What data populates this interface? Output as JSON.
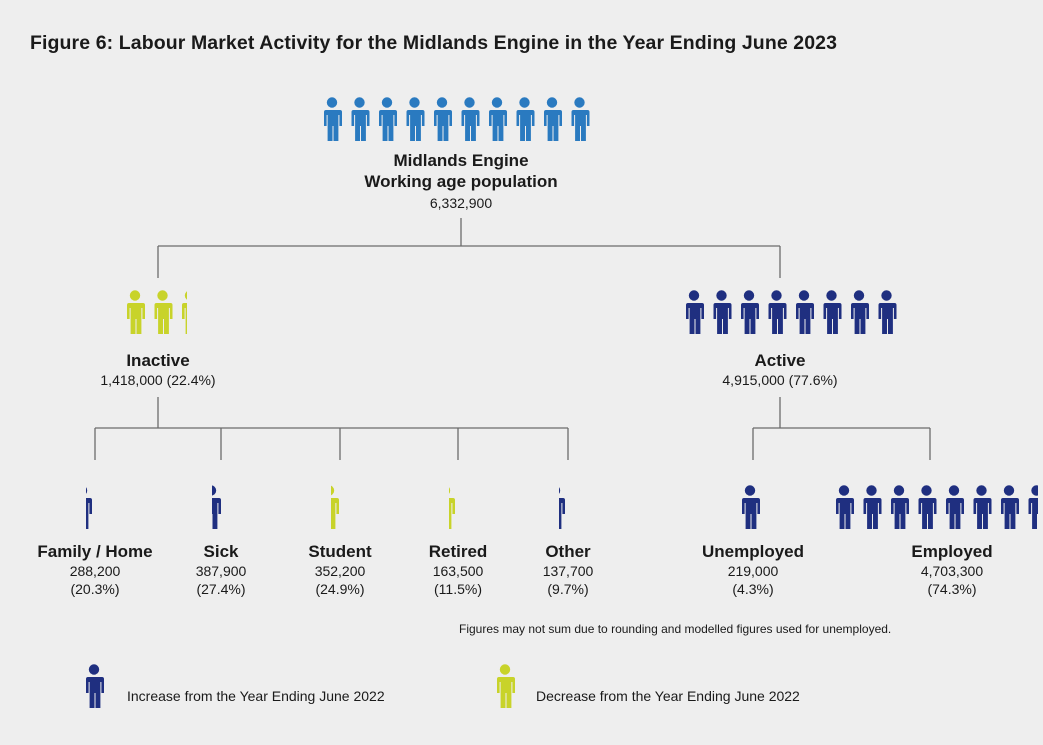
{
  "title": "Figure 6: Labour Market Activity for the Midlands Engine in the Year Ending June 2023",
  "colors": {
    "population": "#2a7ac0",
    "increase": "#1f2f80",
    "decrease": "#c8d32a",
    "connector": "#6b6b6b"
  },
  "root": {
    "name_line1": "Midlands Engine",
    "name_line2": "Working age population",
    "value": "6,332,900",
    "icon_count": 10
  },
  "inactive": {
    "name": "Inactive",
    "value": "1,418,000 (22.4%)",
    "icon_count": 2.24,
    "change": "decrease"
  },
  "active": {
    "name": "Active",
    "value": "4,915,000 (77.6%)",
    "icon_count": 7.76,
    "change": "increase"
  },
  "inactive_children": [
    {
      "name": "Family / Home",
      "value": "288,200",
      "pct": "(20.3%)",
      "change": "increase"
    },
    {
      "name": "Sick",
      "value": "387,900",
      "pct": "(27.4%)",
      "change": "increase"
    },
    {
      "name": "Student",
      "value": "352,200",
      "pct": "(24.9%)",
      "change": "decrease"
    },
    {
      "name": "Retired",
      "value": "163,500",
      "pct": "(11.5%)",
      "change": "decrease"
    },
    {
      "name": "Other",
      "value": "137,700",
      "pct": "(9.7%)",
      "change": "increase"
    }
  ],
  "active_children": [
    {
      "name": "Unemployed",
      "value": "219,000",
      "pct": "(4.3%)",
      "change": "increase",
      "icon_count": 1
    },
    {
      "name": "Employed",
      "value": "4,703,300",
      "pct": "(74.3%)",
      "change": "increase",
      "icon_count": 7.43
    }
  ],
  "footnote": "Figures may not sum due to rounding and modelled figures used for unemployed.",
  "legend": {
    "increase": "Increase from the Year Ending June 2022",
    "decrease": "Decrease from the Year Ending June 2022"
  },
  "icons": {
    "person": "person-icon"
  }
}
